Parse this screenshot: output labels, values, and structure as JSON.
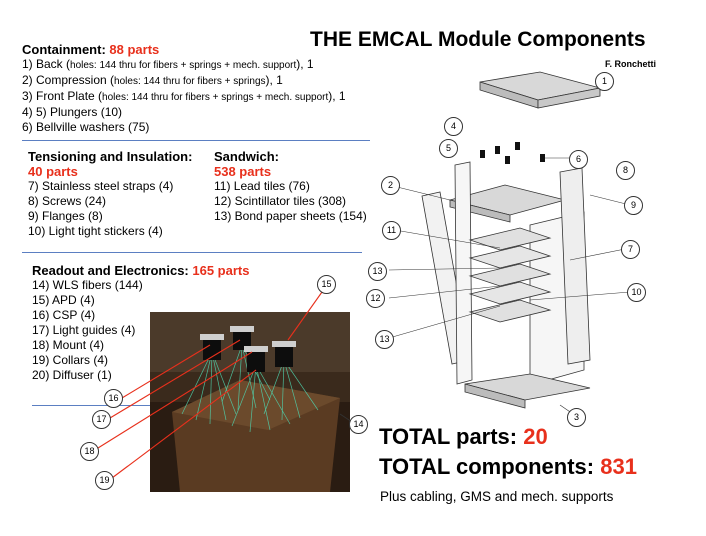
{
  "title": "THE EMCAL Module Components",
  "author": "F. Ronchetti",
  "containment": {
    "heading": "Containment:",
    "count": "88 parts",
    "items": [
      {
        "lead": "1) Back  (",
        "small": "holes: 144 thru for fibers + springs + mech. support",
        "tail": "), 1"
      },
      {
        "lead": "2) Compression (",
        "small": "holes: 144 thru for fibers + springs",
        "tail": "), 1"
      },
      {
        "lead": "3) Front Plate (",
        "small": "holes: 144 thru for fibers + springs + mech. support",
        "tail": "), 1"
      },
      {
        "lead": "4) 5) Plungers (10)",
        "small": "",
        "tail": ""
      },
      {
        "lead": "6) Bellville washers (75)",
        "small": "",
        "tail": ""
      }
    ]
  },
  "tensioning": {
    "heading": "Tensioning and Insulation:",
    "count": "40 parts",
    "items": [
      "7) Stainless steel straps (4)",
      "8) Screws (24)",
      "9) Flanges (8)",
      "10) Light tight stickers (4)"
    ]
  },
  "sandwich": {
    "heading": "Sandwich:",
    "count": "538 parts",
    "items": [
      "11) Lead tiles (76)",
      "12) Scintillator tiles (308)",
      "13) Bond paper sheets (154)"
    ]
  },
  "readout": {
    "heading": "Readout and Electronics:",
    "count": "165 parts",
    "items": [
      "14) WLS fibers (144)",
      "15) APD (4)",
      "16) CSP (4)",
      "17) Light guides (4)",
      "18) Mount (4)",
      "19) Collars (4)",
      "20) Diffuser (1)"
    ]
  },
  "totals": {
    "parts_label": "TOTAL parts: ",
    "parts_value": "20",
    "components_label": "TOTAL components: ",
    "components_value": "831",
    "note": "Plus cabling, GMS and mech. supports"
  },
  "callouts": {
    "c1": "1",
    "c2": "2",
    "c3": "3",
    "c4": "4",
    "c5": "5",
    "c6": "6",
    "c7": "7",
    "c8": "8",
    "c9": "9",
    "c10": "10",
    "c11": "11",
    "c12": "12",
    "c13a": "13",
    "c13b": "13",
    "c14": "14",
    "c15": "15",
    "c16": "16",
    "c17": "17",
    "c18": "18",
    "c19": "19"
  },
  "colors": {
    "accent_red": "#e8301c",
    "separator_blue": "#5b7fc2",
    "fiber_green": "#4fd6b0"
  }
}
